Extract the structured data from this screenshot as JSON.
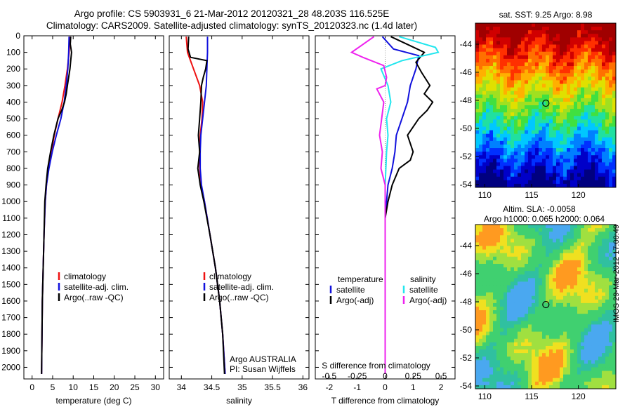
{
  "header": {
    "title_line1": "Argo profile: CS 5903931_6 21-Mar-2012 20120321_28 48.203S 116.525E",
    "title_line2": "Climatology: CARS2009. Satellite-adjusted climatology: synTS_20120323.nc (1.4d later)"
  },
  "colors": {
    "red": "#ee1111",
    "blue": "#1111dd",
    "black": "#000000",
    "cyan": "#22e6ee",
    "magenta": "#ee22ee"
  },
  "chart_data": [
    {
      "id": "temperature",
      "type": "line",
      "xlabel": "temperature (deg C)",
      "ylabel": "",
      "xlim": [
        -2,
        32
      ],
      "ylim": [
        2070,
        0
      ],
      "xticks": [
        "0",
        "5",
        "10",
        "15",
        "20",
        "25",
        "30"
      ],
      "xtick_values": [
        0,
        5,
        10,
        15,
        20,
        25,
        30
      ],
      "yticks": [
        "0",
        "100",
        "200",
        "300",
        "400",
        "500",
        "600",
        "700",
        "800",
        "900",
        "1000",
        "1100",
        "1200",
        "1300",
        "1400",
        "1500",
        "1600",
        "1700",
        "1800",
        "1900",
        "2000"
      ],
      "ytick_values": [
        0,
        100,
        200,
        300,
        400,
        500,
        600,
        700,
        800,
        900,
        1000,
        1100,
        1200,
        1300,
        1400,
        1500,
        1600,
        1700,
        1800,
        1900,
        2000
      ],
      "legend": {
        "placement": "lower-middle",
        "entries": [
          "climatology",
          "satellite-adj. clim.",
          "Argo(..raw -QC)"
        ]
      },
      "series": [
        {
          "name": "climatology",
          "color": "red",
          "x": [
            9.2,
            9.0,
            8.6,
            8.0,
            7.3,
            6.3,
            5.4,
            4.7,
            4.0,
            3.5,
            3.2,
            2.9,
            2.7,
            2.5,
            2.4,
            2.3
          ],
          "y": [
            5,
            100,
            200,
            300,
            400,
            500,
            600,
            700,
            800,
            900,
            1000,
            1200,
            1400,
            1600,
            1800,
            2040
          ]
        },
        {
          "name": "satellite-adj. clim.",
          "color": "blue",
          "x": [
            9.0,
            8.9,
            8.7,
            8.3,
            7.8,
            7.0,
            5.9,
            4.9,
            4.1,
            3.5,
            3.2,
            2.9,
            2.7,
            2.5,
            2.4,
            2.3
          ],
          "y": [
            5,
            100,
            200,
            300,
            400,
            500,
            600,
            700,
            800,
            900,
            1000,
            1200,
            1400,
            1600,
            1800,
            2040
          ]
        },
        {
          "name": "Argo(..raw -QC)",
          "color": "black",
          "x": [
            9.4,
            9.3,
            9.6,
            9.4,
            9.2,
            8.9,
            8.6,
            8.3,
            7.9,
            7.2,
            6.3,
            5.3,
            4.5,
            3.8,
            3.4,
            3.1,
            2.9,
            2.7,
            2.5,
            2.4,
            2.3
          ],
          "y": [
            5,
            50,
            100,
            150,
            200,
            250,
            300,
            350,
            400,
            450,
            500,
            600,
            700,
            800,
            900,
            1000,
            1200,
            1400,
            1600,
            1800,
            2040
          ]
        }
      ]
    },
    {
      "id": "salinity",
      "type": "line",
      "xlabel": "salinity",
      "ylabel": "",
      "xlim": [
        33.8,
        36.1
      ],
      "ylim": [
        2070,
        0
      ],
      "xticks": [
        "34",
        "34.5",
        "35",
        "35.5",
        "36"
      ],
      "xtick_values": [
        34,
        34.5,
        35,
        35.5,
        36
      ],
      "legend": {
        "placement": "lower-middle",
        "entries": [
          "climatology",
          "satellite-adj. clim.",
          "Argo(..raw -QC)"
        ]
      },
      "annotation": [
        "Argo AUSTRALIA",
        "PI: Susan Wijffels"
      ],
      "series": [
        {
          "name": "climatology",
          "color": "red",
          "x": [
            34.08,
            34.1,
            34.2,
            34.3,
            34.35,
            34.34,
            34.31,
            34.3,
            34.3,
            34.32,
            34.38,
            34.47,
            34.56,
            34.63,
            34.68,
            34.72
          ],
          "y": [
            5,
            100,
            200,
            300,
            400,
            500,
            600,
            700,
            800,
            900,
            1000,
            1200,
            1400,
            1600,
            1800,
            2040
          ]
        },
        {
          "name": "satellite-adj. clim.",
          "color": "blue",
          "x": [
            34.43,
            34.43,
            34.42,
            34.41,
            34.38,
            34.35,
            34.32,
            34.31,
            34.31,
            34.33,
            34.38,
            34.47,
            34.56,
            34.63,
            34.68,
            34.72
          ],
          "y": [
            5,
            100,
            200,
            300,
            400,
            500,
            600,
            700,
            800,
            900,
            1000,
            1200,
            1400,
            1600,
            1800,
            2040
          ]
        },
        {
          "name": "Argo(..raw -QC)",
          "color": "black",
          "x": [
            34.12,
            34.11,
            34.15,
            34.42,
            34.4,
            34.36,
            34.33,
            34.32,
            34.3,
            34.28,
            34.3,
            34.27,
            34.29,
            34.31,
            34.37,
            34.47,
            34.56,
            34.63,
            34.68,
            34.71
          ],
          "y": [
            5,
            80,
            130,
            150,
            200,
            250,
            300,
            400,
            500,
            600,
            700,
            800,
            850,
            900,
            1000,
            1200,
            1400,
            1600,
            1800,
            2040
          ]
        }
      ]
    },
    {
      "id": "difference",
      "type": "line",
      "xlabel": "T difference from climatology",
      "xlabel2": "S difference from climatology",
      "xlim": [
        -2.5,
        2.5
      ],
      "ylim": [
        2070,
        0
      ],
      "xticks": [
        "-2",
        "-1",
        "0",
        "1",
        "2"
      ],
      "xtick_values": [
        -2,
        -1,
        0,
        1,
        2
      ],
      "sticks": [
        "-0.5",
        "-0.25",
        "0",
        "0.25",
        "0.5"
      ],
      "stick_values": [
        -0.5,
        -0.25,
        0,
        0.25,
        0.5
      ],
      "legend": {
        "placement": "lower-middle",
        "temperature_heading": "temperature",
        "salinity_heading": "salinity",
        "entries": [
          "satellite",
          "Argo(-adj)",
          "satellite",
          "Argo(-adj)"
        ]
      },
      "series": [
        {
          "name": "satellite",
          "group": "temperature",
          "color": "blue",
          "x": [
            -0.1,
            0.3,
            1.2,
            1.1,
            0.9,
            0.8,
            0.6,
            0.4,
            0.35,
            0.25,
            0.1,
            0.05,
            0.0,
            0.0
          ],
          "y": [
            5,
            80,
            120,
            200,
            300,
            400,
            500,
            600,
            700,
            800,
            900,
            1000,
            1100,
            2040
          ]
        },
        {
          "name": "Argo(-adj)",
          "group": "temperature",
          "color": "black",
          "x": [
            0.2,
            0.9,
            1.4,
            1.1,
            1.3,
            1.6,
            1.4,
            1.7,
            1.5,
            1.2,
            0.8,
            1.0,
            0.9,
            0.5,
            0.25,
            0.1,
            0.0,
            0.0
          ],
          "y": [
            5,
            60,
            100,
            160,
            220,
            300,
            350,
            400,
            450,
            500,
            600,
            700,
            750,
            800,
            900,
            1000,
            1100,
            2040
          ]
        },
        {
          "name": "satellite",
          "group": "salinity",
          "color": "cyan",
          "x": [
            0.5,
            1.8,
            1.9,
            0.6,
            -0.15,
            0.1,
            0.2,
            0.05,
            0.1,
            0.05,
            0.0,
            0.0
          ],
          "y": [
            5,
            70,
            100,
            150,
            200,
            300,
            400,
            500,
            600,
            700,
            900,
            2040
          ]
        },
        {
          "name": "Argo(-adj)",
          "group": "salinity",
          "color": "magenta",
          "x": [
            -0.4,
            -1.2,
            -0.8,
            -0.05,
            0.05,
            0.0,
            -0.3,
            -0.05,
            -0.2,
            -0.1,
            -0.15,
            0.0,
            0.0
          ],
          "y": [
            5,
            100,
            130,
            180,
            250,
            300,
            320,
            400,
            600,
            700,
            800,
            900,
            2040
          ]
        }
      ]
    },
    {
      "id": "sst-map",
      "type": "heatmap",
      "title": "sat. SST: 9.25 Argo: 8.98",
      "xlim": [
        109,
        124
      ],
      "ylim": [
        -54.2,
        -42.5
      ],
      "xticks": [
        "110",
        "115",
        "120"
      ],
      "xtick_values": [
        110,
        115,
        120
      ],
      "yticks": [
        "-44",
        "-46",
        "-48",
        "-50",
        "-52",
        "-54"
      ],
      "ytick_values": [
        -44,
        -46,
        -48,
        -50,
        -52,
        -54
      ],
      "marker": {
        "lon": 116.525,
        "lat": -48.203
      }
    },
    {
      "id": "sla-map",
      "type": "heatmap",
      "title_line1": "Altim. SLA: -0.0058",
      "title_line2": "Argo h1000: 0.065 h2000: 0.064",
      "xlim": [
        109,
        124
      ],
      "ylim": [
        -54.2,
        -42.5
      ],
      "xticks": [
        "110",
        "115",
        "120"
      ],
      "xtick_values": [
        110,
        115,
        120
      ],
      "yticks": [
        "-44",
        "-46",
        "-48",
        "-50",
        "-52",
        "-54"
      ],
      "ytick_values": [
        -44,
        -46,
        -48,
        -50,
        -52,
        -54
      ],
      "marker": {
        "lon": 116.525,
        "lat": -48.203
      }
    }
  ],
  "side_label": "IMOS 29-Mar-2012 17:00:49"
}
